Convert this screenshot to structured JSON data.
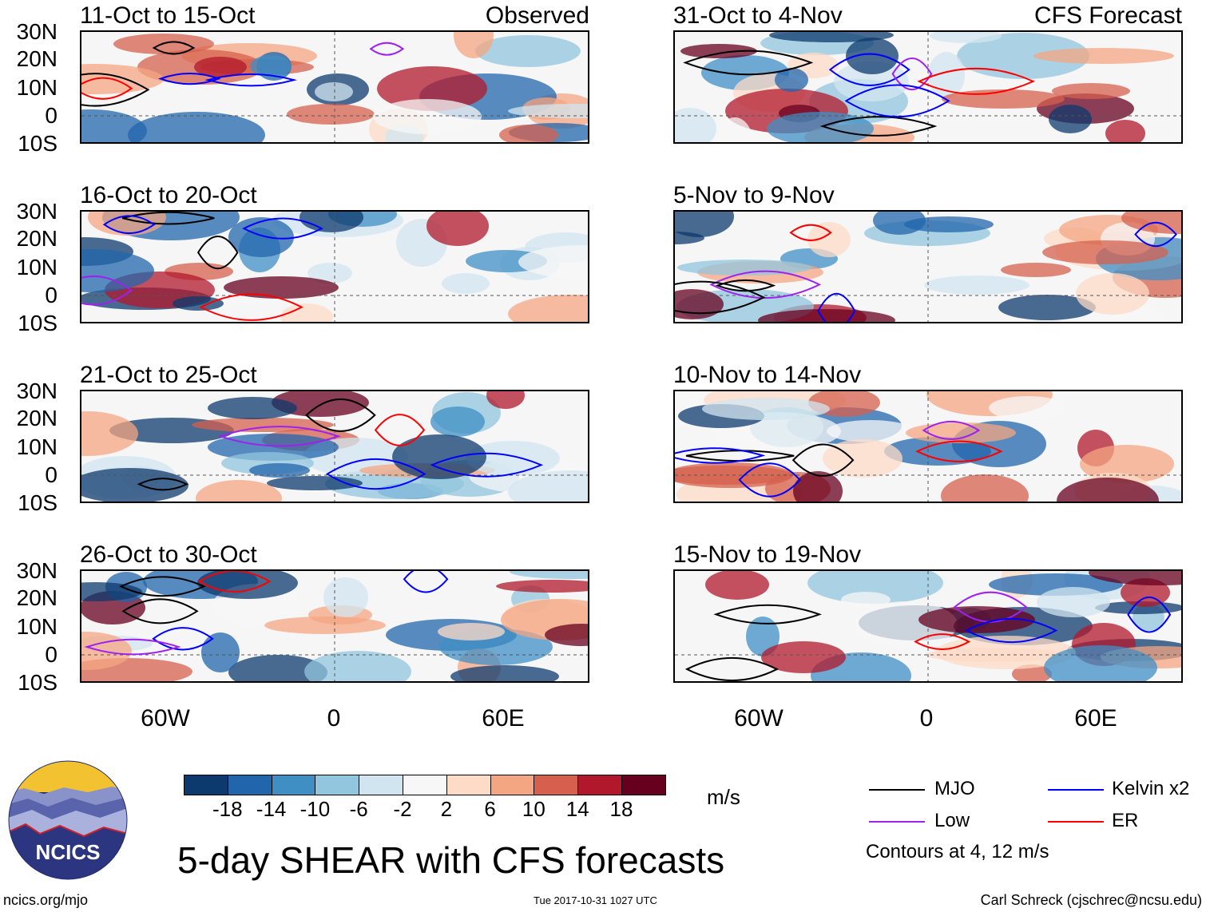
{
  "titles": {
    "left_label": "Observed",
    "right_label": "CFS Forecast"
  },
  "panels_left": [
    {
      "period": "11-Oct to 15-Oct"
    },
    {
      "period": "16-Oct to 20-Oct"
    },
    {
      "period": "21-Oct to 25-Oct"
    },
    {
      "period": "26-Oct to 30-Oct"
    }
  ],
  "panels_right": [
    {
      "period": "31-Oct to 4-Nov"
    },
    {
      "period": "5-Nov to 9-Nov"
    },
    {
      "period": "10-Nov to 14-Nov"
    },
    {
      "period": "15-Nov to 19-Nov"
    }
  ],
  "lat_labels": [
    "30N",
    "20N",
    "10N",
    "0",
    "10S"
  ],
  "lon_labels": [
    "60W",
    "0",
    "60E"
  ],
  "colorbar": {
    "unit": "m/s",
    "labels": [
      "-18",
      "-14",
      "-10",
      "-6",
      "-2",
      "2",
      "6",
      "10",
      "14",
      "18"
    ],
    "colors": [
      "#0d3a6e",
      "#2166ac",
      "#3f8fc5",
      "#92c5de",
      "#d1e5f0",
      "#f7f7f7",
      "#fddbc7",
      "#f4a582",
      "#d6604d",
      "#b2182b",
      "#67001f"
    ]
  },
  "legend": {
    "items": [
      {
        "label": "MJO",
        "color": "#000000"
      },
      {
        "label": "Kelvin x2",
        "color": "#0000ff"
      },
      {
        "label": "Low",
        "color": "#a020f0"
      },
      {
        "label": "ER",
        "color": "#ff0000"
      }
    ],
    "note": "Contours at 4, 12 m/s"
  },
  "main_title": "5-day SHEAR with CFS forecasts",
  "logo_text": "NCICS",
  "footer": {
    "left": "ncics.org/mjo",
    "center": "Tue 2017-10-31 1027 UTC",
    "right": "Carl Schreck (cjschrec@ncsu.edu)"
  }
}
